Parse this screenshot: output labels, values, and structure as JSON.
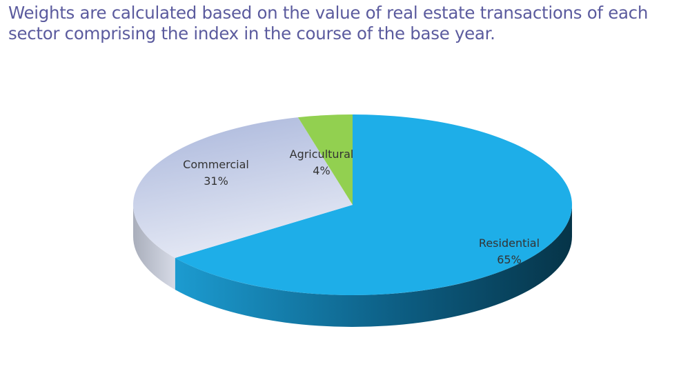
{
  "chart_data": {
    "type": "pie3d",
    "title": "Weights are calculated based on the value of real estate transactions of each sector comprising the index in the course of the base year.",
    "categories": [
      "Residential",
      "Commercial",
      "Agricultural"
    ],
    "values": [
      65,
      31,
      4
    ],
    "value_labels": [
      "65%",
      "31%",
      "4%"
    ],
    "colors": [
      "#1eaee8",
      "#c9d0e8",
      "#92d050"
    ]
  }
}
